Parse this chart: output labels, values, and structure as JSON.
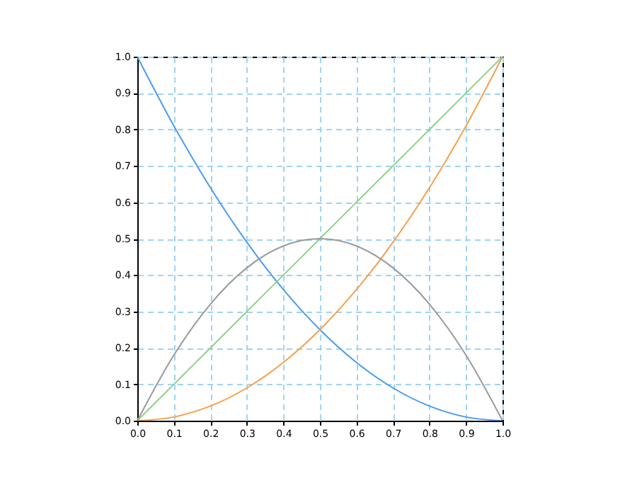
{
  "chart_data": {
    "type": "line",
    "x": [
      0,
      0.1,
      0.2,
      0.3,
      0.4,
      0.5,
      0.6,
      0.7,
      0.8,
      0.9,
      1
    ],
    "series": [
      {
        "color": "#4a9bf0",
        "values": [
          1,
          0.81,
          0.64,
          0.49,
          0.36,
          0.25,
          0.16,
          0.09,
          0.04,
          0.01,
          0
        ]
      },
      {
        "color": "#f5a04a",
        "values": [
          0,
          0.01,
          0.04,
          0.09,
          0.16,
          0.25,
          0.36,
          0.49,
          0.64,
          0.81,
          1
        ]
      },
      {
        "color": "#8fd18a",
        "values": [
          0,
          0.1,
          0.2,
          0.3,
          0.4,
          0.5,
          0.6,
          0.7,
          0.8,
          0.9,
          1
        ]
      },
      {
        "color": "#9a9a9a",
        "values": [
          0,
          0.18,
          0.32,
          0.42,
          0.48,
          0.5,
          0.48,
          0.42,
          0.32,
          0.18,
          0
        ]
      }
    ],
    "xlim": [
      0,
      1
    ],
    "ylim": [
      0,
      1
    ],
    "xticks": [
      {
        "value": 0,
        "label": "0.0"
      },
      0.1,
      0.2,
      0.3,
      0.4,
      0.5,
      0.6,
      0.7,
      0.8,
      0.9,
      {
        "value": 1,
        "label": "1.0"
      }
    ],
    "yticks": [
      {
        "value": 0,
        "label": "0.0"
      },
      0.1,
      0.2,
      0.3,
      0.4,
      0.5,
      0.6,
      0.7,
      0.8,
      0.9,
      {
        "value": 1,
        "label": "1.0"
      }
    ],
    "grid": true,
    "legend": false,
    "marker": "none",
    "line_style": "solid"
  }
}
